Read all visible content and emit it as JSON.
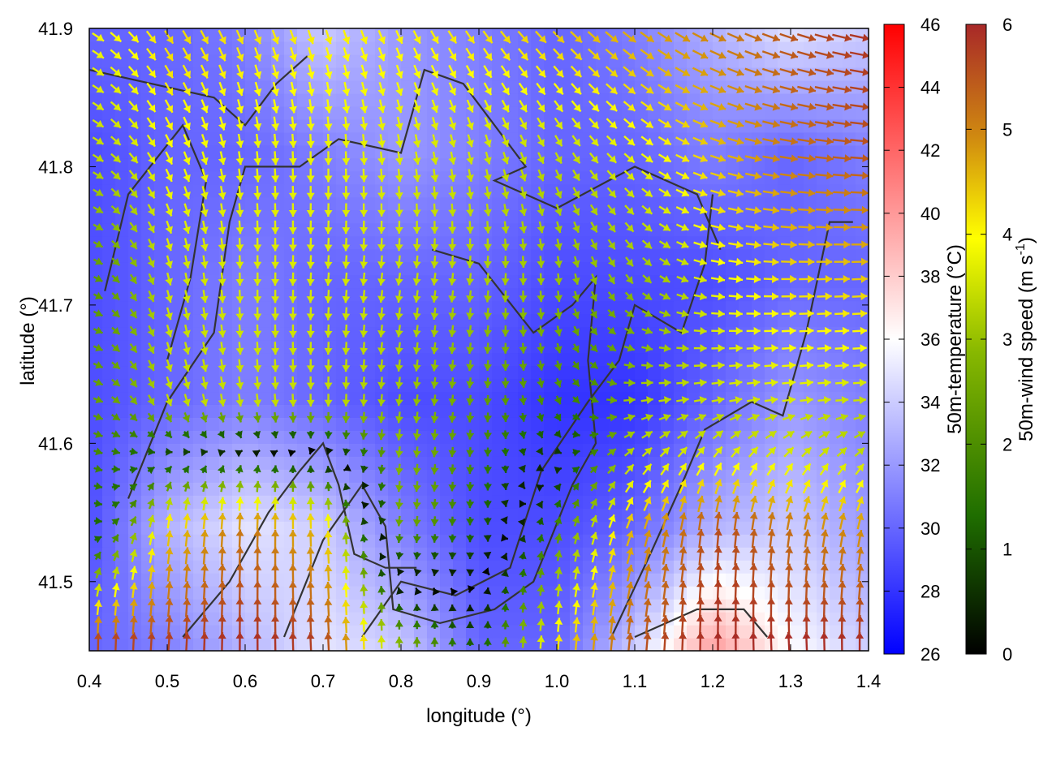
{
  "chart_data": {
    "type": "heatmap",
    "title": "",
    "xlabel": "longitude (°)",
    "ylabel": "latitude (°)",
    "xlim": [
      0.4,
      1.4
    ],
    "ylim": [
      41.45,
      41.9
    ],
    "x_ticks": [
      "0.4",
      "0.5",
      "0.6",
      "0.7",
      "0.8",
      "0.9",
      "1.0",
      "1.1",
      "1.2",
      "1.3",
      "1.4"
    ],
    "y_ticks": [
      "41.5",
      "41.6",
      "41.7",
      "41.8",
      "41.9"
    ],
    "temperature_colorbar": {
      "label": "50m-temperature (°C)",
      "range": [
        26,
        46
      ],
      "ticks": [
        "26",
        "28",
        "30",
        "32",
        "34",
        "36",
        "38",
        "40",
        "42",
        "44",
        "46"
      ],
      "colors": [
        "#0000ff",
        "#ffffff",
        "#ff0000"
      ]
    },
    "wind_colorbar": {
      "label": "50m-wind speed (m s",
      "label_superscript": "-1",
      "label_close": ")",
      "range": [
        0,
        6
      ],
      "ticks": [
        "0",
        "1",
        "2",
        "3",
        "4",
        "5",
        "6"
      ],
      "colors": [
        "#000000",
        "#1f6e00",
        "#88b800",
        "#ffff00",
        "#d08a10",
        "#a82828"
      ]
    },
    "contour_color": "#333333",
    "temperature_field": {
      "description_grid": "lon x lat, 11 x 6",
      "lon": [
        0.4,
        0.5,
        0.6,
        0.7,
        0.8,
        0.9,
        1.0,
        1.1,
        1.2,
        1.3,
        1.4
      ],
      "lat": [
        41.45,
        41.54,
        41.63,
        41.72,
        41.81,
        41.9
      ],
      "values": [
        [
          30,
          31,
          33,
          35,
          34,
          30,
          30,
          34,
          40,
          36,
          34
        ],
        [
          29,
          33,
          35,
          34,
          31,
          29,
          29,
          30,
          33,
          34,
          32
        ],
        [
          29,
          30,
          31,
          30,
          29,
          29,
          28,
          28,
          30,
          32,
          31
        ],
        [
          29,
          30,
          31,
          30,
          30,
          30,
          29,
          29,
          29,
          30,
          30
        ],
        [
          29,
          30,
          30,
          31,
          32,
          31,
          30,
          30,
          31,
          30,
          31
        ],
        [
          30,
          30,
          31,
          34,
          32,
          31,
          30,
          31,
          33,
          35,
          34
        ]
      ]
    },
    "wind_field": {
      "lon": [
        0.4,
        0.5,
        0.6,
        0.7,
        0.8,
        0.9,
        1.0,
        1.1,
        1.2,
        1.3,
        1.4
      ],
      "lat": [
        41.45,
        41.54,
        41.63,
        41.72,
        41.81,
        41.9
      ],
      "u": [
        [
          0.0,
          0.4,
          0.0,
          -0.3,
          0.0,
          0.0,
          0.3,
          0.5,
          0.0,
          -0.4,
          0.0
        ],
        [
          1.2,
          0.6,
          0.2,
          -0.2,
          -0.2,
          0.0,
          0.4,
          1.5,
          0.5,
          0.8,
          1.0
        ],
        [
          2.0,
          1.0,
          0.4,
          0.0,
          -0.3,
          -0.2,
          0.6,
          2.8,
          3.0,
          3.2,
          3.0
        ],
        [
          1.8,
          0.8,
          0.0,
          -0.2,
          -0.4,
          -0.3,
          0.2,
          1.6,
          3.4,
          4.0,
          4.2
        ],
        [
          2.6,
          1.6,
          0.4,
          0.0,
          0.5,
          0.8,
          1.4,
          2.6,
          4.0,
          5.0,
          5.5
        ],
        [
          3.0,
          2.2,
          1.6,
          1.2,
          1.6,
          2.4,
          3.0,
          3.6,
          4.4,
          5.2,
          5.8
        ]
      ],
      "v": [
        [
          6.0,
          5.8,
          6.0,
          5.8,
          2.6,
          1.0,
          4.0,
          5.5,
          6.0,
          6.0,
          6.0
        ],
        [
          -0.6,
          4.0,
          5.0,
          4.2,
          -2.2,
          -1.2,
          1.6,
          4.2,
          5.5,
          5.0,
          4.5
        ],
        [
          -0.5,
          -2.8,
          -3.0,
          -3.0,
          -2.6,
          -2.0,
          -1.6,
          0.4,
          0.6,
          0.4,
          0.2
        ],
        [
          -0.6,
          -3.0,
          -3.2,
          -3.2,
          -3.0,
          -2.8,
          -2.6,
          -2.0,
          -0.6,
          0.0,
          0.2
        ],
        [
          -1.4,
          -3.2,
          -3.4,
          -3.4,
          -3.2,
          -3.0,
          -2.6,
          -2.2,
          -1.4,
          -0.8,
          -0.4
        ],
        [
          -1.8,
          -3.4,
          -3.6,
          -3.6,
          -3.4,
          -3.2,
          -3.0,
          -2.8,
          -2.2,
          -1.8,
          -1.2
        ]
      ]
    },
    "contours": [
      [
        [
          0.4,
          41.87
        ],
        [
          0.48,
          41.86
        ],
        [
          0.56,
          41.85
        ],
        [
          0.6,
          41.83
        ],
        [
          0.64,
          41.86
        ],
        [
          0.68,
          41.88
        ]
      ],
      [
        [
          0.42,
          41.71
        ],
        [
          0.45,
          41.78
        ],
        [
          0.52,
          41.83
        ],
        [
          0.55,
          41.79
        ],
        [
          0.53,
          41.72
        ],
        [
          0.5,
          41.66
        ]
      ],
      [
        [
          0.45,
          41.56
        ],
        [
          0.5,
          41.63
        ],
        [
          0.56,
          41.68
        ],
        [
          0.58,
          41.76
        ],
        [
          0.6,
          41.8
        ],
        [
          0.67,
          41.8
        ],
        [
          0.72,
          41.82
        ],
        [
          0.8,
          41.81
        ],
        [
          0.83,
          41.87
        ],
        [
          0.88,
          41.86
        ],
        [
          0.96,
          41.8
        ],
        [
          0.92,
          41.79
        ],
        [
          1.0,
          41.77
        ],
        [
          1.1,
          41.8
        ],
        [
          1.18,
          41.78
        ],
        [
          1.21,
          41.74
        ]
      ],
      [
        [
          0.52,
          41.46
        ],
        [
          0.58,
          41.5
        ],
        [
          0.63,
          41.55
        ],
        [
          0.67,
          41.58
        ],
        [
          0.7,
          41.6
        ],
        [
          0.72,
          41.57
        ],
        [
          0.74,
          41.52
        ],
        [
          0.78,
          41.51
        ],
        [
          0.82,
          41.51
        ]
      ],
      [
        [
          0.65,
          41.46
        ],
        [
          0.7,
          41.53
        ],
        [
          0.75,
          41.57
        ],
        [
          0.78,
          41.54
        ],
        [
          0.79,
          41.48
        ],
        [
          0.85,
          41.47
        ],
        [
          0.92,
          41.48
        ],
        [
          0.97,
          41.5
        ],
        [
          1.02,
          41.57
        ],
        [
          1.05,
          41.6
        ],
        [
          1.04,
          41.66
        ],
        [
          1.05,
          41.72
        ],
        [
          1.02,
          41.7
        ],
        [
          0.97,
          41.68
        ],
        [
          0.9,
          41.73
        ],
        [
          0.84,
          41.74
        ]
      ],
      [
        [
          0.75,
          41.46
        ],
        [
          0.8,
          41.5
        ],
        [
          0.87,
          41.49
        ],
        [
          0.94,
          41.51
        ],
        [
          0.98,
          41.58
        ],
        [
          1.04,
          41.63
        ],
        [
          1.08,
          41.66
        ],
        [
          1.1,
          41.7
        ],
        [
          1.16,
          41.68
        ],
        [
          1.19,
          41.73
        ],
        [
          1.2,
          41.78
        ]
      ],
      [
        [
          1.07,
          41.46
        ],
        [
          1.12,
          41.52
        ],
        [
          1.16,
          41.57
        ],
        [
          1.19,
          41.61
        ],
        [
          1.25,
          41.63
        ],
        [
          1.29,
          41.62
        ],
        [
          1.32,
          41.68
        ],
        [
          1.35,
          41.76
        ],
        [
          1.38,
          41.76
        ]
      ],
      [
        [
          1.1,
          41.46
        ],
        [
          1.18,
          41.48
        ],
        [
          1.24,
          41.48
        ],
        [
          1.27,
          41.46
        ]
      ]
    ]
  }
}
